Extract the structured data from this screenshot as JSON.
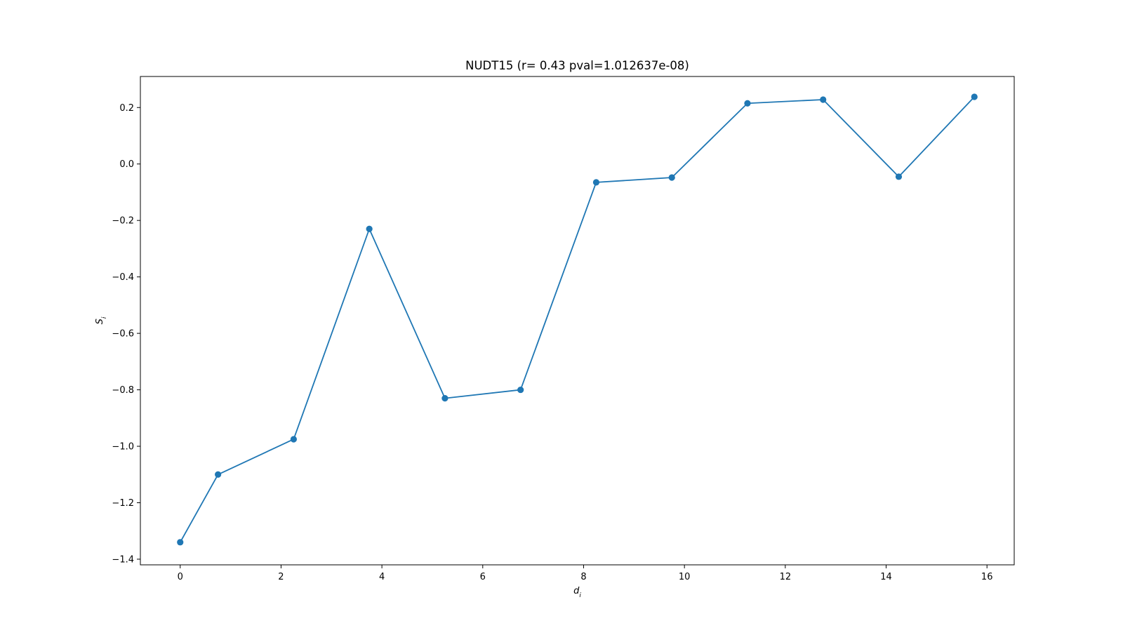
{
  "chart_data": {
    "type": "line",
    "title": "NUDT15 (r= 0.43 pval=1.012637e-08)",
    "xlabel": "d",
    "xlabel_sub": "i",
    "ylabel": "S",
    "ylabel_sub": "i",
    "xlim": [
      -0.79,
      16.54
    ],
    "ylim": [
      -1.42,
      0.31
    ],
    "xticks": [
      0,
      2,
      4,
      6,
      8,
      10,
      12,
      14,
      16
    ],
    "yticks": [
      0.2,
      0.0,
      -0.2,
      -0.4,
      -0.6,
      -0.8,
      -1.0,
      -1.2,
      -1.4
    ],
    "xtick_labels": [
      "0",
      "2",
      "4",
      "6",
      "8",
      "10",
      "12",
      "14",
      "16"
    ],
    "ytick_labels": [
      "0.2",
      "0.0",
      "−0.2",
      "−0.4",
      "−0.6",
      "−0.8",
      "−1.0",
      "−1.2",
      "−1.4"
    ],
    "grid": false,
    "series": [
      {
        "color": "#1f77b4",
        "marker": "circle",
        "x": [
          0.0,
          0.75,
          2.25,
          3.75,
          5.25,
          6.75,
          8.25,
          9.75,
          11.25,
          12.75,
          14.25,
          15.75
        ],
        "y": [
          -1.34,
          -1.1,
          -0.975,
          -0.23,
          -0.83,
          -0.8,
          -0.065,
          -0.048,
          0.215,
          0.228,
          -0.045,
          0.238
        ]
      }
    ]
  }
}
